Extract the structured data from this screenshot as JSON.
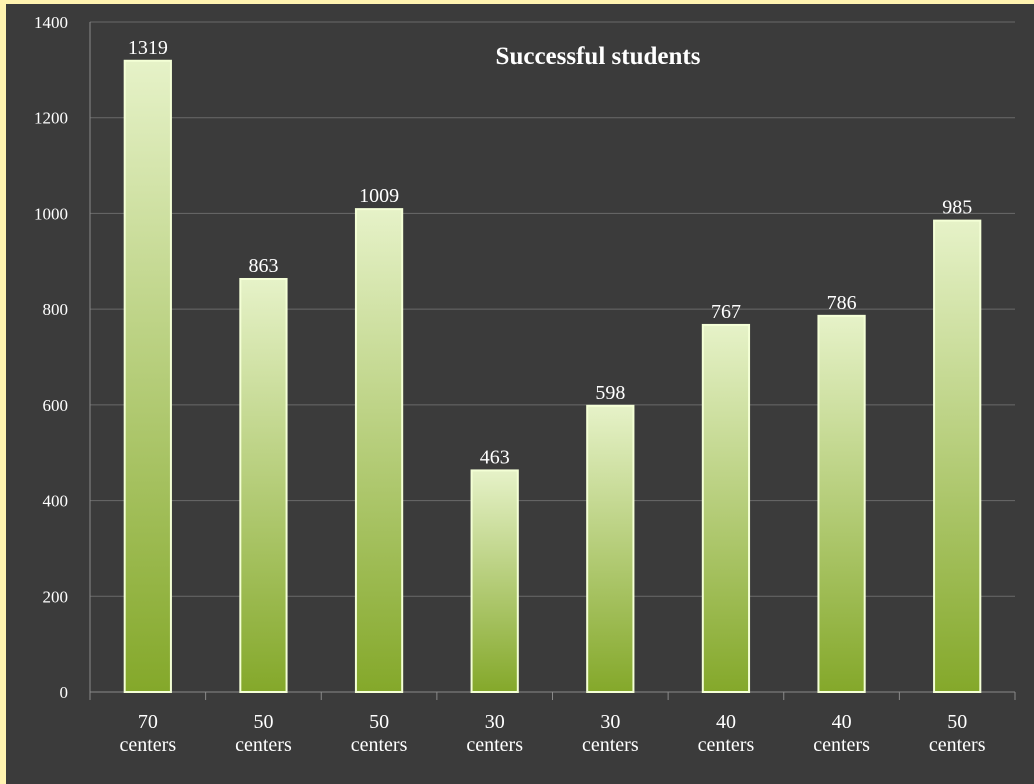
{
  "chart_data": {
    "type": "bar",
    "title": "Successful students",
    "xlabel": "",
    "ylabel": "",
    "categories": [
      [
        "70",
        "centers"
      ],
      [
        "50",
        "centers"
      ],
      [
        "50",
        "centers"
      ],
      [
        "30",
        "centers"
      ],
      [
        "30",
        "centers"
      ],
      [
        "40",
        "centers"
      ],
      [
        "40",
        "centers"
      ],
      [
        "50",
        "centers"
      ]
    ],
    "values": [
      1319,
      863,
      1009,
      463,
      598,
      767,
      786,
      985
    ],
    "ylim": [
      0,
      1400
    ],
    "yticks": [
      0,
      200,
      400,
      600,
      800,
      1000,
      1200,
      1400
    ],
    "grid": true,
    "data_labels": true,
    "legend": "none",
    "colors": {
      "background": "#000000",
      "plot_area": "#3b3b3b",
      "frame": "#fff3b0",
      "bar_top": "#e6f2c8",
      "bar_bottom": "#84a82a",
      "bar_outline": "#f4ffd6",
      "gridline": "#6a6a6a",
      "text": "#ffffff"
    }
  }
}
